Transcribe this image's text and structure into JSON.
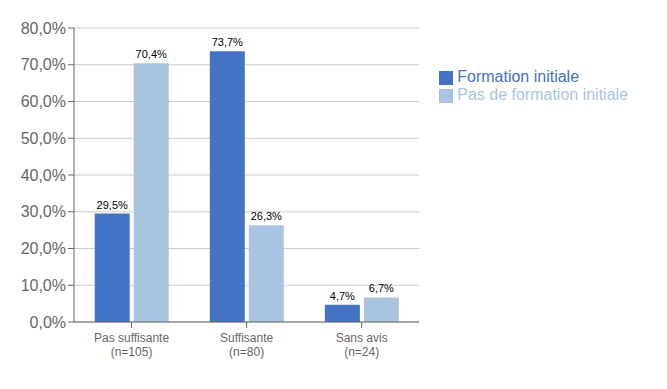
{
  "chart_data": {
    "type": "bar",
    "categories": [
      "Pas suffisante\n(n=105)",
      "Suffisante\n(n=80)",
      "Sans avis\n(n=24)"
    ],
    "series": [
      {
        "name": "Formation initiale",
        "color": "#4472C4",
        "values": [
          29.5,
          73.7,
          4.7
        ],
        "value_labels": [
          "29,5%",
          "73,7%",
          "4,7%"
        ]
      },
      {
        "name": "Pas de formation initiale",
        "color": "#A9C4E0",
        "values": [
          70.4,
          26.3,
          6.7
        ],
        "value_labels": [
          "70,4%",
          "26,3%",
          "6,7%"
        ]
      }
    ],
    "ylim": [
      0,
      80
    ],
    "yticks": [
      {
        "value": 0,
        "label": "0,0%"
      },
      {
        "value": 10,
        "label": "10,0%"
      },
      {
        "value": 20,
        "label": "20,0%"
      },
      {
        "value": 30,
        "label": "30,0%"
      },
      {
        "value": 40,
        "label": "40,0%"
      },
      {
        "value": 50,
        "label": "50,0%"
      },
      {
        "value": 60,
        "label": "60,0%"
      },
      {
        "value": 70,
        "label": "70,0%"
      },
      {
        "value": 80,
        "label": "80,0%"
      }
    ],
    "grid": true,
    "legend": "right",
    "data_labels": true
  }
}
